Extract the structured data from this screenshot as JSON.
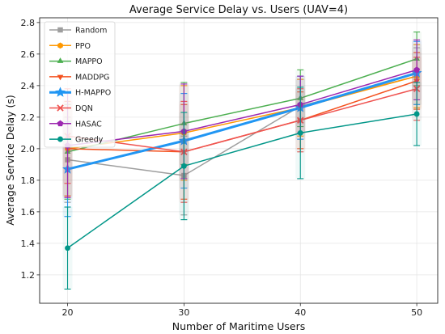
{
  "chart_data": {
    "type": "line",
    "title": "Average Service Delay vs. Users (UAV=4)",
    "xlabel": "Number of Maritime Users",
    "ylabel": "Average Service Delay (s)",
    "x": [
      20,
      30,
      40,
      50
    ],
    "xticks": [
      "20",
      "30",
      "40",
      "50"
    ],
    "yticks": [
      "1.2",
      "1.4",
      "1.6",
      "1.8",
      "2.0",
      "2.2",
      "2.4",
      "2.6",
      "2.8"
    ],
    "xlim": [
      17.6,
      51.8
    ],
    "ylim": [
      1.02,
      2.83
    ],
    "grid": true,
    "legend": "upper left",
    "series": [
      {
        "name": "Random",
        "color": "#9e9e9e",
        "marker": "square",
        "values": [
          1.93,
          1.83,
          2.27,
          2.46
        ],
        "error": [
          0.27,
          0.25,
          0.17,
          0.18
        ]
      },
      {
        "name": "PPO",
        "color": "#ff9800",
        "marker": "hexagon",
        "values": [
          2.0,
          2.1,
          2.26,
          2.46
        ],
        "error": [
          0.3,
          0.3,
          0.18,
          0.2
        ]
      },
      {
        "name": "MAPPO",
        "color": "#4caf50",
        "marker": "triangle-up",
        "values": [
          1.98,
          2.16,
          2.32,
          2.57
        ],
        "error": [
          0.3,
          0.26,
          0.18,
          0.17
        ]
      },
      {
        "name": "MADDPG",
        "color": "#f4511e",
        "marker": "triangle-down",
        "values": [
          2.0,
          1.98,
          2.18,
          2.43
        ],
        "error": [
          0.3,
          0.3,
          0.18,
          0.18
        ]
      },
      {
        "name": "H-MAPPO",
        "color": "#2196f3",
        "marker": "star",
        "values": [
          1.87,
          2.05,
          2.26,
          2.48
        ],
        "error": [
          0.3,
          0.3,
          0.2,
          0.2
        ]
      },
      {
        "name": "DQN",
        "color": "#ef5350",
        "marker": "x",
        "values": [
          2.08,
          1.98,
          2.18,
          2.38
        ],
        "error": [
          0.3,
          0.32,
          0.2,
          0.2
        ]
      },
      {
        "name": "HASAC",
        "color": "#9c27b0",
        "marker": "pentagon",
        "values": [
          2.02,
          2.11,
          2.28,
          2.5
        ],
        "error": [
          0.33,
          0.3,
          0.18,
          0.19
        ]
      },
      {
        "name": "Greedy",
        "color": "#009688",
        "marker": "circle",
        "values": [
          1.37,
          1.89,
          2.1,
          2.22
        ],
        "error": [
          0.26,
          0.34,
          0.29,
          0.2
        ]
      }
    ]
  }
}
